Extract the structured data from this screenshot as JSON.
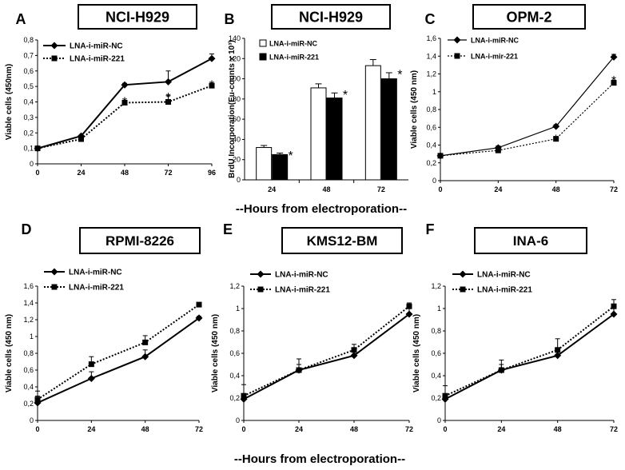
{
  "figure": {
    "shared_xlabel_top": "--Hours from electroporation--",
    "shared_xlabel_bottom": "--Hours from electroporation--",
    "significance_marker": "*"
  },
  "chart_data": [
    {
      "panel": "A",
      "type": "line",
      "title": "NCI-H929",
      "xlabel": "",
      "ylabel": "Viable cells (450nm)",
      "x": [
        0,
        24,
        48,
        72,
        96
      ],
      "xticks": [
        "0",
        "24",
        "48",
        "72",
        "96"
      ],
      "ylim": [
        0,
        0.8
      ],
      "yticks": [
        "0",
        "0,1",
        "0,2",
        "0,3",
        "0,4",
        "0,5",
        "0,6",
        "0,7",
        "0,8"
      ],
      "legend_position": "top-left",
      "series": [
        {
          "name": "LNA-i-miR-NC",
          "values": [
            0.1,
            0.18,
            0.51,
            0.53,
            0.68
          ],
          "errors": [
            0.005,
            0.005,
            0.01,
            0.07,
            0.03
          ],
          "marker": "diamond",
          "dash": "solid",
          "width": 2
        },
        {
          "name": "LNA-i-miR-221",
          "values": [
            0.1,
            0.16,
            0.395,
            0.4,
            0.505
          ],
          "errors": [
            0.005,
            0.005,
            0.01,
            0.04,
            0.01
          ],
          "marker": "square",
          "dash": "dotted",
          "width": 2
        }
      ],
      "significance": [
        {
          "x": 48,
          "y": 0.42
        },
        {
          "x": 72,
          "y": 0.45
        },
        {
          "x": 96,
          "y": 0.53
        }
      ]
    },
    {
      "panel": "B",
      "type": "bar",
      "title": "NCI-H929",
      "xlabel": "",
      "ylabel": "BrdU Incorporation(Eu-counts x 10³)",
      "categories": [
        "24",
        "48",
        "72"
      ],
      "ylim": [
        0,
        140
      ],
      "yticks": [
        "0",
        "20",
        "40",
        "60",
        "80",
        "100",
        "120",
        "140"
      ],
      "legend_position": "top-left",
      "series": [
        {
          "name": "LNA-i-miR-NC",
          "values": [
            32,
            91,
            113
          ],
          "errors": [
            2,
            4,
            6
          ],
          "fill": "#ffffff"
        },
        {
          "name": "LNA-i-miR-221",
          "values": [
            25,
            81,
            100
          ],
          "errors": [
            1.5,
            5,
            6
          ],
          "fill": "#000000"
        }
      ],
      "significance": [
        {
          "x": "24",
          "y": 27
        },
        {
          "x": "48",
          "y": 87
        },
        {
          "x": "72",
          "y": 107
        }
      ]
    },
    {
      "panel": "C",
      "type": "line",
      "title": "OPM-2",
      "xlabel": "",
      "ylabel": "Viable cells (450 nm)",
      "x": [
        0,
        24,
        48,
        72
      ],
      "xticks": [
        "0",
        "24",
        "48",
        "72"
      ],
      "ylim": [
        0,
        1.6
      ],
      "yticks": [
        "0",
        "0,2",
        "0,4",
        "0,6",
        "0,8",
        "1",
        "1,2",
        "1,4",
        "1,6"
      ],
      "legend_position": "top-left",
      "series": [
        {
          "name": "LNA-i-miR-NC",
          "values": [
            0.28,
            0.37,
            0.61,
            1.39
          ],
          "errors": [
            0.01,
            0.02,
            0.02,
            0.03
          ],
          "marker": "diamond",
          "dash": "solid",
          "width": 1.2
        },
        {
          "name": "LNA-i-mir-221",
          "values": [
            0.28,
            0.34,
            0.47,
            1.1
          ],
          "errors": [
            0.01,
            0.01,
            0.01,
            0.03
          ],
          "marker": "square",
          "dash": "dotted",
          "width": 1.2
        }
      ],
      "significance": [
        {
          "x": 48,
          "y": 0.5
        },
        {
          "x": 72,
          "y": 1.16
        }
      ]
    },
    {
      "panel": "D",
      "type": "line",
      "title": "RPMI-8226",
      "xlabel": "",
      "ylabel": "Viable cells (450 nm)",
      "x": [
        0,
        24,
        48,
        72
      ],
      "xticks": [
        "0",
        "24",
        "48",
        "72"
      ],
      "ylim": [
        0,
        1.6
      ],
      "yticks": [
        "0",
        "0,2",
        "0,4",
        "0,6",
        "0,8",
        "1",
        "1,2",
        "1,4",
        "1,6"
      ],
      "legend_position": "top-left",
      "series": [
        {
          "name": "LNA-i-miR-NC",
          "values": [
            0.21,
            0.5,
            0.76,
            1.22
          ],
          "errors": [
            0.08,
            0.08,
            0.08,
            0.02
          ],
          "marker": "diamond",
          "dash": "solid",
          "width": 2
        },
        {
          "name": "LNA-i-miR-221",
          "values": [
            0.25,
            0.67,
            0.93,
            1.38
          ],
          "errors": [
            0.1,
            0.09,
            0.08,
            0.02
          ],
          "marker": "square",
          "dash": "dotted",
          "width": 2
        }
      ]
    },
    {
      "panel": "E",
      "type": "line",
      "title": "KMS12-BM",
      "xlabel": "",
      "ylabel": "Viable cells (450 nm)",
      "x": [
        0,
        24,
        48,
        72
      ],
      "xticks": [
        "0",
        "24",
        "48",
        "72"
      ],
      "ylim": [
        0,
        1.2
      ],
      "yticks": [
        "0",
        "0,2",
        "0,4",
        "0,6",
        "0,8",
        "1",
        "1,2"
      ],
      "legend_position": "top-left",
      "series": [
        {
          "name": "LNA-i-miR-NC",
          "values": [
            0.19,
            0.45,
            0.58,
            0.95
          ],
          "errors": [
            0.04,
            0.1,
            0.01,
            0.05
          ],
          "marker": "diamond",
          "dash": "solid",
          "width": 2
        },
        {
          "name": "LNA-i-miR-221",
          "values": [
            0.22,
            0.45,
            0.63,
            1.02
          ],
          "errors": [
            0.1,
            0.05,
            0.05,
            0.03
          ],
          "marker": "square",
          "dash": "dotted",
          "width": 2
        }
      ]
    },
    {
      "panel": "F",
      "type": "line",
      "title": "INA-6",
      "xlabel": "",
      "ylabel": "Viable cells (450 nm)",
      "x": [
        0,
        24,
        48,
        72
      ],
      "xticks": [
        "0",
        "24",
        "48",
        "72"
      ],
      "ylim": [
        0,
        1.2
      ],
      "yticks": [
        "0",
        "0,2",
        "0,4",
        "0,6",
        "0,8",
        "1",
        "1,2"
      ],
      "legend_position": "top-left",
      "series": [
        {
          "name": "LNA-i-miR-NC",
          "values": [
            0.19,
            0.45,
            0.58,
            0.95
          ],
          "errors": [
            0.04,
            0.09,
            0.01,
            0.05
          ],
          "marker": "diamond",
          "dash": "solid",
          "width": 2
        },
        {
          "name": "LNA-i-miR-221",
          "values": [
            0.22,
            0.45,
            0.63,
            1.02
          ],
          "errors": [
            0.09,
            0.05,
            0.1,
            0.06
          ],
          "marker": "square",
          "dash": "dotted",
          "width": 2
        }
      ]
    }
  ]
}
